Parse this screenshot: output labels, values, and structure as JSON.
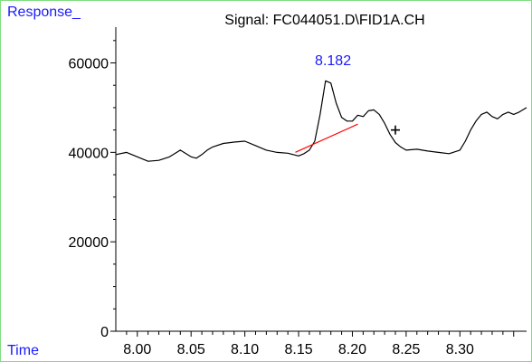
{
  "chart_data": {
    "type": "line",
    "title": "Signal: FC044051.D\\FID1A.CH",
    "ylabel": "Response_",
    "xlabel": "Time",
    "xlim": [
      7.98,
      8.362
    ],
    "ylim": [
      0,
      68000
    ],
    "x_ticks": [
      "8.00",
      "8.05",
      "8.10",
      "8.15",
      "8.20",
      "8.25",
      "8.30"
    ],
    "x_tick_values": [
      8.0,
      8.05,
      8.1,
      8.15,
      8.2,
      8.25,
      8.3
    ],
    "y_ticks": [
      "0",
      "20000",
      "40000",
      "60000"
    ],
    "y_tick_values": [
      0,
      20000,
      40000,
      60000
    ],
    "series": [
      {
        "x": [
          7.98,
          7.99,
          8.0,
          8.01,
          8.02,
          8.03,
          8.04,
          8.05,
          8.055,
          8.06,
          8.065,
          8.07,
          8.08,
          8.09,
          8.1,
          8.11,
          8.12,
          8.13,
          8.14,
          8.15,
          8.155,
          8.16,
          8.165,
          8.17,
          8.175,
          8.18,
          8.185,
          8.19,
          8.195,
          8.2,
          8.205,
          8.21,
          8.215,
          8.22,
          8.225,
          8.23,
          8.235,
          8.24,
          8.245,
          8.25,
          8.26,
          8.27,
          8.28,
          8.29,
          8.3,
          8.305,
          8.31,
          8.315,
          8.32,
          8.325,
          8.33,
          8.335,
          8.34,
          8.345,
          8.35,
          8.355,
          8.362
        ],
        "y": [
          39500,
          40000,
          39000,
          38000,
          38200,
          39000,
          40500,
          39000,
          38700,
          39500,
          40500,
          41200,
          42000,
          42300,
          42500,
          41500,
          40500,
          40000,
          39800,
          39200,
          39700,
          40500,
          42500,
          48500,
          56000,
          55500,
          51000,
          47800,
          47000,
          47000,
          48300,
          48000,
          49300,
          49500,
          48500,
          46500,
          44000,
          42200,
          41200,
          40500,
          40700,
          40300,
          40000,
          39700,
          40500,
          42500,
          45000,
          47000,
          48500,
          49000,
          48000,
          47500,
          48500,
          49000,
          48500,
          49000,
          50000
        ]
      }
    ],
    "baseline": {
      "x": [
        8.147,
        8.205
      ],
      "y": [
        40000,
        46300
      ],
      "color": "#ff0000"
    },
    "peak_label": {
      "text": "8.182",
      "x": 8.182,
      "y": 59500,
      "color": "#1a1aff"
    },
    "marker": {
      "x": 8.24,
      "y": 45000,
      "symbol": "+"
    }
  }
}
